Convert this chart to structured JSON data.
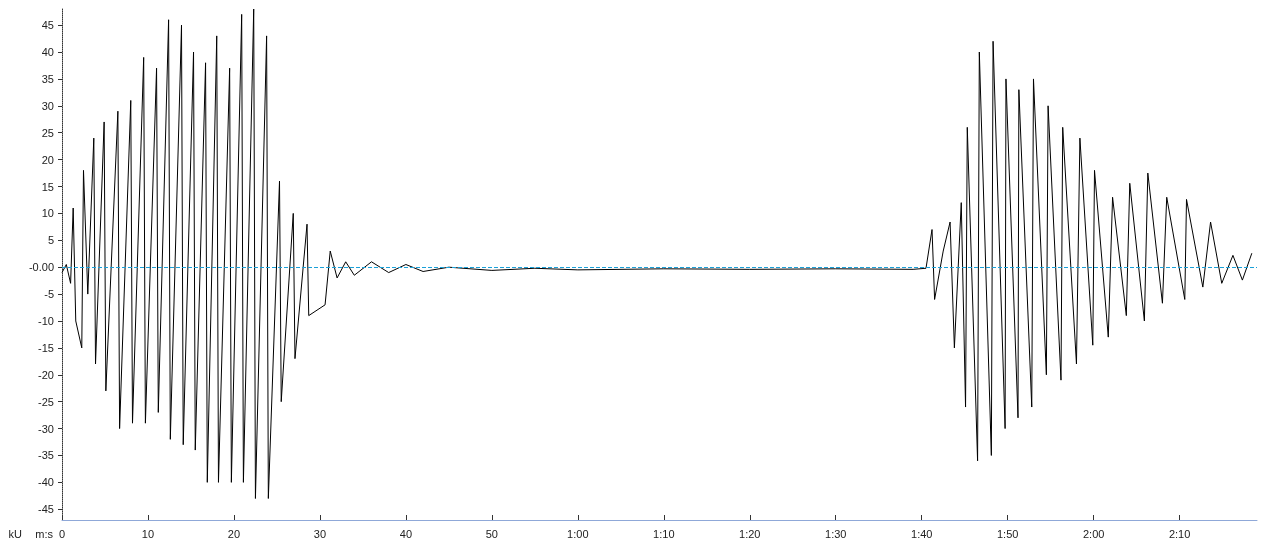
{
  "chart_data": {
    "type": "line",
    "xlabel": "m:s",
    "ylabel": "kU",
    "x": [
      0,
      0.5,
      1.0,
      1.3,
      1.6,
      2.3,
      2.5,
      3.0,
      3.7,
      3.9,
      4.9,
      5.1,
      6.5,
      6.7,
      8.0,
      8.2,
      9.5,
      9.7,
      11.0,
      11.2,
      12.4,
      12.6,
      13.9,
      14.1,
      15.3,
      15.5,
      16.7,
      16.9,
      18.0,
      18.2,
      19.5,
      19.7,
      20.9,
      21.1,
      22.3,
      22.5,
      23.8,
      24.0,
      25.3,
      25.5,
      26.9,
      27.1,
      28.5,
      28.7,
      30.6,
      31.2,
      32,
      33,
      34,
      36,
      38,
      40,
      42,
      45,
      50,
      55,
      60,
      70,
      80,
      90,
      99,
      100.5,
      101.2,
      101.5,
      102.5,
      103.3,
      103.8,
      104.6,
      105.1,
      105.3,
      106.5,
      106.7,
      108.1,
      108.3,
      109.7,
      109.8,
      111.2,
      111.3,
      112.8,
      113,
      114.5,
      114.7,
      116.2,
      116.4,
      118,
      118.4,
      119.9,
      120.1,
      121.7,
      122.2,
      123.8,
      124.2,
      125.9,
      126.3,
      128,
      128.5,
      130.6,
      130.8,
      132.7,
      133.6,
      134.9,
      136.2,
      137.3,
      138.4
    ],
    "series": [
      {
        "color": "#000000",
        "values": [
          -1,
          0.5,
          -3,
          11,
          -10,
          -15,
          18,
          -5,
          24,
          -18,
          27,
          -23,
          29,
          -30,
          31,
          -29,
          39,
          -29,
          37,
          -27,
          46,
          -32,
          45,
          -33,
          40,
          -34,
          38,
          -40,
          43,
          -40,
          37,
          -40,
          47,
          -40,
          48,
          -43,
          43,
          -43,
          16,
          -25,
          10,
          -17,
          8,
          -9,
          -7,
          3,
          -2,
          1,
          -1.5,
          1,
          -1,
          0.5,
          -0.8,
          0,
          -0.6,
          -0.2,
          -0.5,
          -0.3,
          -0.4,
          -0.3,
          -0.4,
          -0.2,
          7,
          -6,
          3,
          8.4,
          -15,
          12,
          -26,
          26,
          -36,
          40,
          -35,
          42,
          -30,
          35,
          -28,
          33,
          -26,
          35,
          -20,
          30,
          -21,
          26,
          -18,
          24,
          -14.5,
          18,
          -13,
          13,
          -9,
          15.6,
          -10,
          17.5,
          -6.7,
          13,
          -6,
          12.6,
          -3.7,
          8.4,
          -3,
          2.2,
          -2.4,
          2.6
        ]
      }
    ],
    "xlim": [
      0,
      139
    ],
    "xticks": [
      0,
      10,
      20,
      30,
      40,
      50,
      {
        "value": 60,
        "label": "1:00"
      },
      {
        "value": 70,
        "label": "1:10"
      },
      {
        "value": 80,
        "label": "1:20"
      },
      {
        "value": 90,
        "label": "1:30"
      },
      {
        "value": 100,
        "label": "1:40"
      },
      {
        "value": 110,
        "label": "1:50"
      },
      {
        "value": 120,
        "label": "2:00"
      },
      {
        "value": 130,
        "label": "2:10"
      }
    ],
    "ylim": [
      -47,
      48
    ],
    "yticks": [
      -45,
      -40,
      -35,
      -30,
      -25,
      -20,
      -15,
      -10,
      -5,
      {
        "value": 0,
        "label": "-0.00"
      },
      5,
      10,
      15,
      20,
      25,
      30,
      35,
      40,
      45
    ],
    "ref_lines": [
      {
        "axis": "y",
        "value": 0,
        "color": "#1aa0d8",
        "line_style": "dashed"
      }
    ],
    "marker": "none",
    "line_style": "solid",
    "grid": false
  }
}
